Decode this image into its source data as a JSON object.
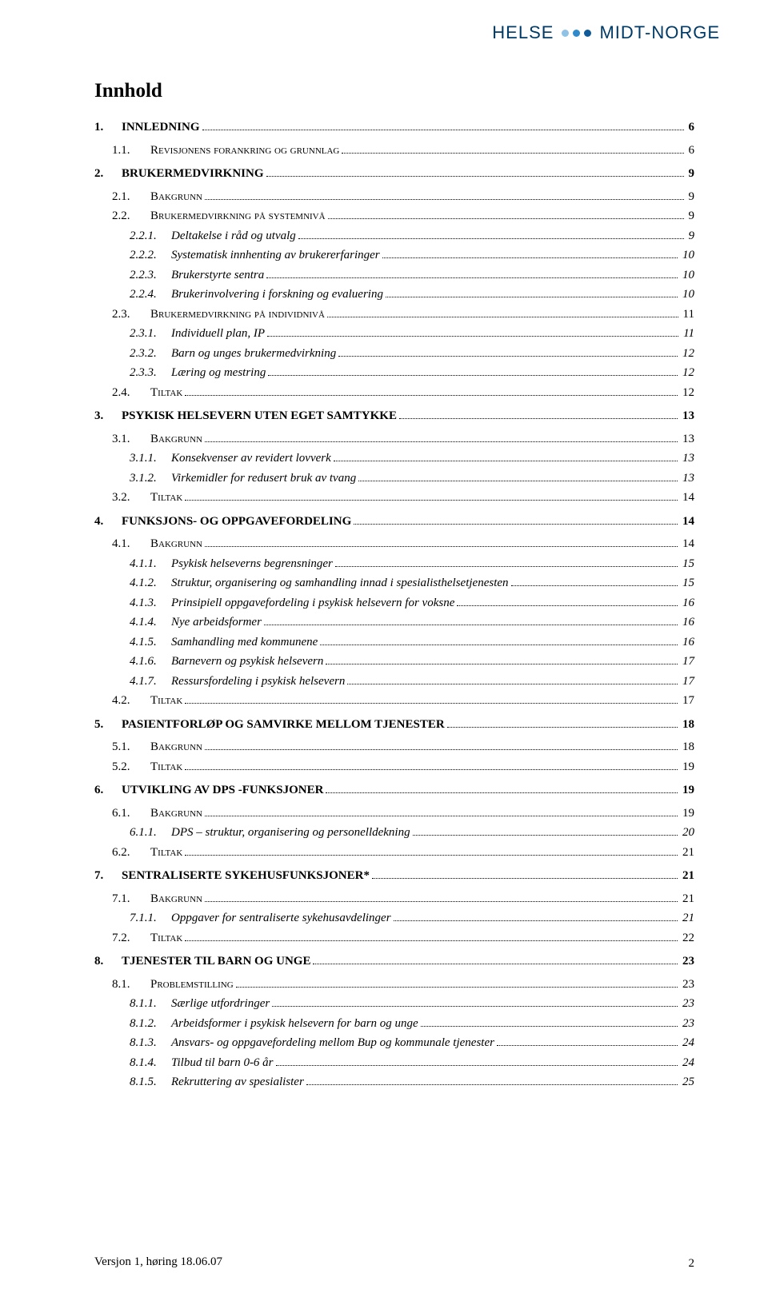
{
  "logo": {
    "left_text": "HELSE",
    "right_text": "MIDT-NORGE",
    "text_color": "#003a66",
    "dot_colors": [
      "#8fc2e4",
      "#2f8acb",
      "#0f5a99"
    ]
  },
  "title": "Innhold",
  "colors": {
    "background": "#ffffff",
    "text": "#000000"
  },
  "footer": {
    "version": "Versjon 1, høring 18.06.07",
    "page_number": "2"
  },
  "toc": [
    {
      "level": 1,
      "num": "1.",
      "label": "INNLEDNING",
      "page": "6"
    },
    {
      "level": 2,
      "num": "1.1.",
      "label": "Revisjonens forankring og grunnlag",
      "page": "6"
    },
    {
      "level": 1,
      "num": "2.",
      "label": "BRUKERMEDVIRKNING",
      "page": "9"
    },
    {
      "level": 2,
      "num": "2.1.",
      "label": "Bakgrunn",
      "page": "9"
    },
    {
      "level": 2,
      "num": "2.2.",
      "label": "Brukermedvirkning på systemnivå",
      "page": "9"
    },
    {
      "level": 3,
      "num": "2.2.1.",
      "label": "Deltakelse i råd og utvalg",
      "page": "9"
    },
    {
      "level": 3,
      "num": "2.2.2.",
      "label": "Systematisk innhenting av brukererfaringer",
      "page": "10"
    },
    {
      "level": 3,
      "num": "2.2.3.",
      "label": "Brukerstyrte sentra",
      "page": "10"
    },
    {
      "level": 3,
      "num": "2.2.4.",
      "label": "Brukerinvolvering i forskning og evaluering",
      "page": "10"
    },
    {
      "level": 2,
      "num": "2.3.",
      "label": "Brukermedvirkning på individnivå",
      "page": "11"
    },
    {
      "level": 3,
      "num": "2.3.1.",
      "label": "Individuell plan, IP",
      "page": "11"
    },
    {
      "level": 3,
      "num": "2.3.2.",
      "label": "Barn og unges brukermedvirkning",
      "page": "12"
    },
    {
      "level": 3,
      "num": "2.3.3.",
      "label": "Læring og mestring",
      "page": "12"
    },
    {
      "level": 2,
      "num": "2.4.",
      "label": "Tiltak",
      "page": "12"
    },
    {
      "level": 1,
      "num": "3.",
      "label": "PSYKISK HELSEVERN UTEN EGET SAMTYKKE",
      "page": "13"
    },
    {
      "level": 2,
      "num": "3.1.",
      "label": "Bakgrunn",
      "page": "13"
    },
    {
      "level": 3,
      "num": "3.1.1.",
      "label": "Konsekvenser av revidert lovverk",
      "page": "13"
    },
    {
      "level": 3,
      "num": "3.1.2.",
      "label": "Virkemidler for redusert bruk av tvang",
      "page": "13"
    },
    {
      "level": 2,
      "num": "3.2.",
      "label": "Tiltak",
      "page": "14"
    },
    {
      "level": 1,
      "num": "4.",
      "label": "FUNKSJONS- OG OPPGAVEFORDELING",
      "page": "14"
    },
    {
      "level": 2,
      "num": "4.1.",
      "label": "Bakgrunn",
      "page": "14"
    },
    {
      "level": 3,
      "num": "4.1.1.",
      "label": "Psykisk helseverns begrensninger",
      "page": "15"
    },
    {
      "level": 3,
      "num": "4.1.2.",
      "label": "Struktur, organisering og samhandling innad i spesialisthelsetjenesten",
      "page": "15"
    },
    {
      "level": 3,
      "num": "4.1.3.",
      "label": "Prinsipiell oppgavefordeling i psykisk helsevern for voksne",
      "page": "16"
    },
    {
      "level": 3,
      "num": "4.1.4.",
      "label": "Nye arbeidsformer",
      "page": "16"
    },
    {
      "level": 3,
      "num": "4.1.5.",
      "label": "Samhandling med kommunene",
      "page": "16"
    },
    {
      "level": 3,
      "num": "4.1.6.",
      "label": "Barnevern og psykisk helsevern",
      "page": "17"
    },
    {
      "level": 3,
      "num": "4.1.7.",
      "label": "Ressursfordeling i psykisk helsevern",
      "page": "17"
    },
    {
      "level": 2,
      "num": "4.2.",
      "label": "Tiltak",
      "page": "17"
    },
    {
      "level": 1,
      "num": "5.",
      "label": "PASIENTFORLØP OG SAMVIRKE MELLOM TJENESTER",
      "page": "18"
    },
    {
      "level": 2,
      "num": "5.1.",
      "label": "Bakgrunn",
      "page": "18"
    },
    {
      "level": 2,
      "num": "5.2.",
      "label": "Tiltak",
      "page": "19"
    },
    {
      "level": 1,
      "num": "6.",
      "label": "UTVIKLING AV DPS -FUNKSJONER",
      "page": "19"
    },
    {
      "level": 2,
      "num": "6.1.",
      "label": "Bakgrunn",
      "page": "19"
    },
    {
      "level": 3,
      "num": "6.1.1.",
      "label": "DPS – struktur, organisering og personelldekning",
      "page": "20"
    },
    {
      "level": 2,
      "num": "6.2.",
      "label": "Tiltak",
      "page": "21"
    },
    {
      "level": 1,
      "num": "7.",
      "label": "SENTRALISERTE SYKEHUSFUNKSJONER*",
      "page": "21"
    },
    {
      "level": 2,
      "num": "7.1.",
      "label": "Bakgrunn",
      "page": "21"
    },
    {
      "level": 3,
      "num": "7.1.1.",
      "label": "Oppgaver for sentraliserte sykehusavdelinger",
      "page": "21"
    },
    {
      "level": 2,
      "num": "7.2.",
      "label": "Tiltak",
      "page": "22"
    },
    {
      "level": 1,
      "num": "8.",
      "label": "TJENESTER TIL BARN OG UNGE",
      "page": "23"
    },
    {
      "level": 2,
      "num": "8.1.",
      "label": "Problemstilling",
      "page": "23"
    },
    {
      "level": 3,
      "num": "8.1.1.",
      "label": "Særlige utfordringer",
      "page": "23"
    },
    {
      "level": 3,
      "num": "8.1.2.",
      "label": "Arbeidsformer i psykisk helsevern for barn og unge",
      "page": "23"
    },
    {
      "level": 3,
      "num": "8.1.3.",
      "label": "Ansvars- og oppgavefordeling mellom Bup og kommunale tjenester",
      "page": "24"
    },
    {
      "level": 3,
      "num": "8.1.4.",
      "label": "Tilbud til barn 0-6 år",
      "page": "24"
    },
    {
      "level": 3,
      "num": "8.1.5.",
      "label": "Rekruttering av spesialister",
      "page": "25"
    }
  ]
}
